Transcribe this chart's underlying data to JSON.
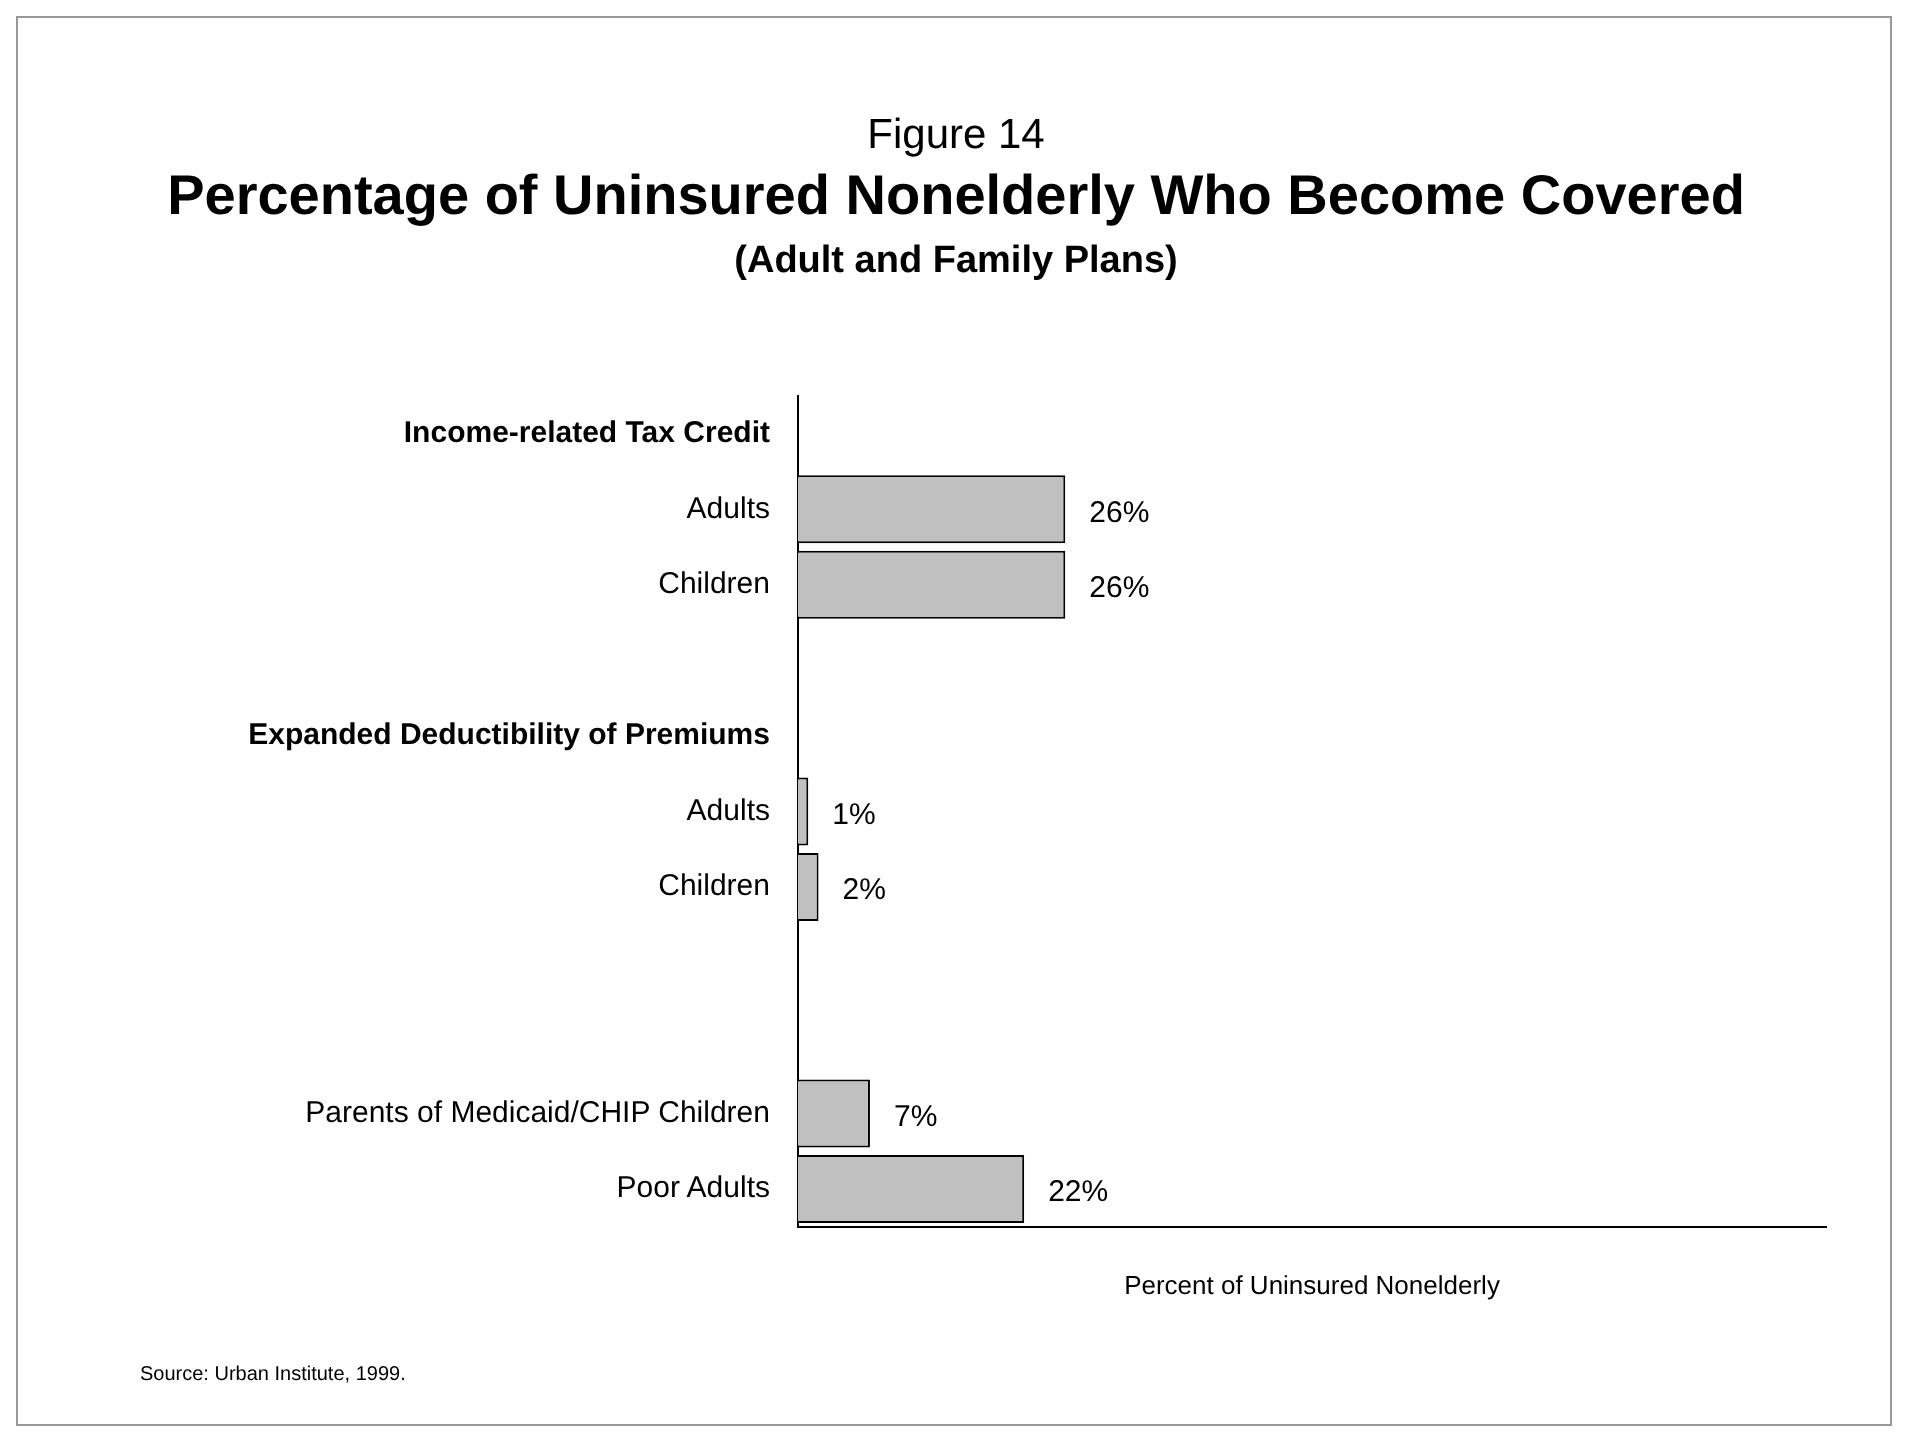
{
  "chart_data": {
    "type": "bar",
    "orientation": "horizontal",
    "title": "Percentage of Uninsured Nonelderly Who Become Covered",
    "subtitle": "(Adult and Family Plans)",
    "xlabel": "Percent of Uninsured Nonelderly",
    "annotations": [
      "Figure 14",
      "Source: Urban Institute, 1999."
    ],
    "categories": [
      "Income-related Tax Credit",
      "Adults",
      "Children",
      null,
      "Expanded Deductibility of Premiums",
      "Adults",
      "Children",
      null,
      null,
      "Parents of Medicaid/CHIP Children",
      "Poor Adults"
    ],
    "values": [
      null,
      26,
      26,
      null,
      null,
      1,
      2,
      null,
      null,
      7,
      22
    ],
    "value_labels": [
      null,
      "26%",
      "26%",
      null,
      null,
      "1%",
      "2%",
      null,
      null,
      "7%",
      "22%"
    ],
    "color": "#c0c0c0",
    "xlim": [
      0,
      100
    ],
    "relative": false,
    "grid": false,
    "legend": false
  }
}
